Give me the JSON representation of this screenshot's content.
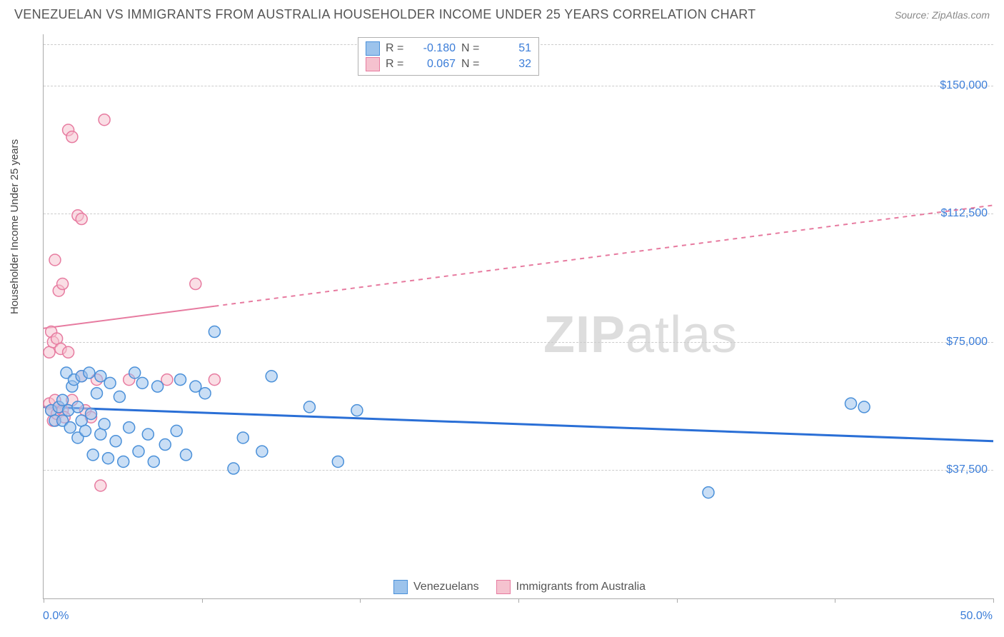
{
  "title": "VENEZUELAN VS IMMIGRANTS FROM AUSTRALIA HOUSEHOLDER INCOME UNDER 25 YEARS CORRELATION CHART",
  "source": "Source: ZipAtlas.com",
  "ylabel": "Householder Income Under 25 years",
  "watermark_a": "ZIP",
  "watermark_b": "atlas",
  "xmin_label": "0.0%",
  "xmax_label": "50.0%",
  "chart": {
    "type": "scatter",
    "xlim": [
      0,
      50
    ],
    "ylim": [
      0,
      165000
    ],
    "xtick_positions": [
      0,
      8.33,
      16.67,
      25,
      33.33,
      41.67,
      50
    ],
    "ytick_positions": [
      37500,
      75000,
      112500,
      150000
    ],
    "ytick_labels": [
      "$37,500",
      "$75,000",
      "$112,500",
      "$150,000"
    ],
    "grid_color": "#cccccc",
    "axis_color": "#aaaaaa",
    "background_color": "#ffffff",
    "text_color_accent": "#3b7dd8",
    "marker_radius": 8,
    "marker_stroke_width": 1.5,
    "series": [
      {
        "name": "Venezuelans",
        "fill": "#9cc3ec",
        "stroke": "#4a90d9",
        "fill_opacity": 0.55,
        "R": "-0.180",
        "N": "51",
        "trend": {
          "y_at_xmin": 56000,
          "y_at_xmax": 46000,
          "solid_until_x": 50,
          "color": "#2a6fd6",
          "width": 3
        },
        "points": [
          [
            0.4,
            55000
          ],
          [
            0.6,
            52000
          ],
          [
            0.8,
            56000
          ],
          [
            1.0,
            58000
          ],
          [
            1.0,
            52000
          ],
          [
            1.2,
            66000
          ],
          [
            1.3,
            55000
          ],
          [
            1.4,
            50000
          ],
          [
            1.5,
            62000
          ],
          [
            1.6,
            64000
          ],
          [
            1.8,
            47000
          ],
          [
            1.8,
            56000
          ],
          [
            2.0,
            65000
          ],
          [
            2.0,
            52000
          ],
          [
            2.2,
            49000
          ],
          [
            2.4,
            66000
          ],
          [
            2.5,
            54000
          ],
          [
            2.6,
            42000
          ],
          [
            2.8,
            60000
          ],
          [
            3.0,
            48000
          ],
          [
            3.0,
            65000
          ],
          [
            3.2,
            51000
          ],
          [
            3.4,
            41000
          ],
          [
            3.5,
            63000
          ],
          [
            3.8,
            46000
          ],
          [
            4.0,
            59000
          ],
          [
            4.2,
            40000
          ],
          [
            4.5,
            50000
          ],
          [
            4.8,
            66000
          ],
          [
            5.0,
            43000
          ],
          [
            5.2,
            63000
          ],
          [
            5.5,
            48000
          ],
          [
            5.8,
            40000
          ],
          [
            6.0,
            62000
          ],
          [
            6.4,
            45000
          ],
          [
            7.0,
            49000
          ],
          [
            7.2,
            64000
          ],
          [
            7.5,
            42000
          ],
          [
            8.0,
            62000
          ],
          [
            8.5,
            60000
          ],
          [
            9.0,
            78000
          ],
          [
            10.0,
            38000
          ],
          [
            10.5,
            47000
          ],
          [
            11.5,
            43000
          ],
          [
            12.0,
            65000
          ],
          [
            14.0,
            56000
          ],
          [
            15.5,
            40000
          ],
          [
            16.5,
            55000
          ],
          [
            35.0,
            31000
          ],
          [
            42.5,
            57000
          ],
          [
            43.2,
            56000
          ]
        ]
      },
      {
        "name": "Immigrants from Australia",
        "fill": "#f5c2cf",
        "stroke": "#e77ba0",
        "fill_opacity": 0.55,
        "R": "0.067",
        "N": "32",
        "trend": {
          "y_at_xmin": 79000,
          "y_at_xmax": 115000,
          "solid_until_x": 9,
          "color": "#e77ba0",
          "width": 2
        },
        "points": [
          [
            0.3,
            57000
          ],
          [
            0.3,
            72000
          ],
          [
            0.4,
            55000
          ],
          [
            0.4,
            78000
          ],
          [
            0.5,
            52000
          ],
          [
            0.5,
            75000
          ],
          [
            0.6,
            58000
          ],
          [
            0.6,
            99000
          ],
          [
            0.7,
            54000
          ],
          [
            0.7,
            76000
          ],
          [
            0.8,
            90000
          ],
          [
            0.8,
            56000
          ],
          [
            0.9,
            73000
          ],
          [
            1.0,
            92000
          ],
          [
            1.0,
            55000
          ],
          [
            1.1,
            53000
          ],
          [
            1.3,
            137000
          ],
          [
            1.3,
            72000
          ],
          [
            1.5,
            135000
          ],
          [
            1.5,
            58000
          ],
          [
            1.8,
            112000
          ],
          [
            2.0,
            111000
          ],
          [
            2.0,
            65000
          ],
          [
            2.2,
            55000
          ],
          [
            2.5,
            53000
          ],
          [
            2.8,
            64000
          ],
          [
            3.0,
            33000
          ],
          [
            3.2,
            140000
          ],
          [
            4.5,
            64000
          ],
          [
            6.5,
            64000
          ],
          [
            8.0,
            92000
          ],
          [
            9.0,
            64000
          ]
        ]
      }
    ]
  }
}
